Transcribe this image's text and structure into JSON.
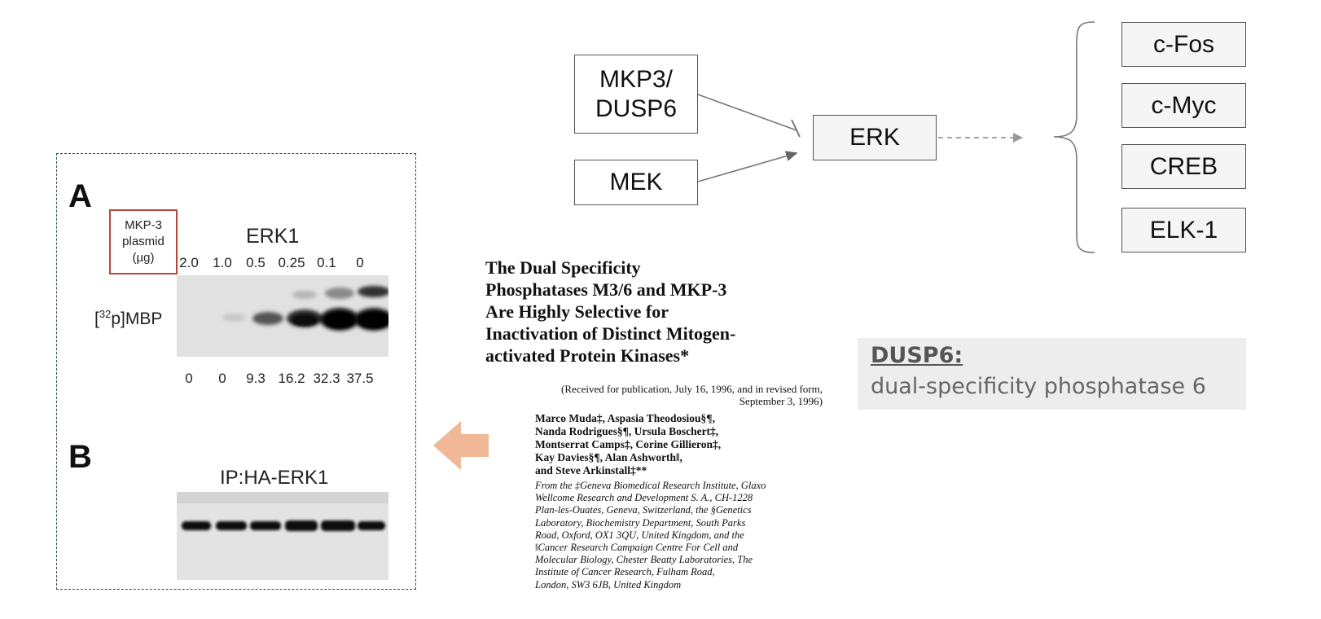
{
  "pathway": {
    "mkp3": "MKP3/\nDUSP6",
    "mek": "MEK",
    "erk": "ERK",
    "targets": [
      "c-Fos",
      "c-Myc",
      "CREB",
      "ELK-1"
    ]
  },
  "figure": {
    "panel_a": "A",
    "panel_b": "B",
    "plasmid_label": "MKP-3\nplasmid\n(µg)",
    "erk1_label": "ERK1",
    "lane_amounts": [
      "2.0",
      "1.0",
      "0.5",
      "0.25",
      "0.1",
      "0"
    ],
    "mbp_label_sup": "32",
    "mbp_label_pre": "[",
    "mbp_label_post": "p]MBP",
    "quant_values": [
      "0",
      "0",
      "9.3",
      "16.2",
      "32.3",
      "37.5"
    ],
    "ip_label": "IP:HA-ERK1"
  },
  "paper": {
    "title_lines": [
      "The Dual Specificity",
      "Phosphatases M3/6 and MKP-3",
      "Are Highly Selective for",
      "Inactivation of Distinct Mitogen-",
      "activated Protein Kinases*"
    ],
    "received_lines": [
      "(Received for publication, July 16, 1996, and in revised form,",
      "September 3, 1996)"
    ],
    "author_lines": [
      "Marco Muda‡, Aspasia Theodosiou§¶,",
      "Nanda Rodrigues§¶, Ursula Boschert‡,",
      "Montserrat Camps‡, Corine Gillieron‡,",
      "Kay Davies§¶, Alan Ashworth‖,",
      "and Steve Arkinstall‡**"
    ],
    "affiliation_lines": [
      "From the ‡Geneva Biomedical Research Institute, Glaxo",
      "Wellcome Research and Development S. A., CH-1228",
      "Plan-les-Ouates, Geneva, Switzerland, the §Genetics",
      "Laboratory, Biochemistry Department, South Parks",
      "Road, Oxford, OX1 3QU, United Kingdom, and the",
      "‖Cancer Research Campaign Centre For Cell and",
      "Molecular Biology, Chester Beatty Laboratories, The",
      "Institute of Cancer Research, Fulham Road,",
      "London, SW3 6JB, United Kingdom"
    ]
  },
  "definition": {
    "term": "DUSP6:",
    "text": "dual-specificity phosphatase 6"
  },
  "colors": {
    "arrow": "#f0b896",
    "plasmid_box": "#b5473a",
    "panel_border": "#1f4e5a",
    "def_bg": "#ededed"
  },
  "icons": {
    "big_arrow": "left-arrow-icon",
    "brace": "left-brace-icon"
  }
}
